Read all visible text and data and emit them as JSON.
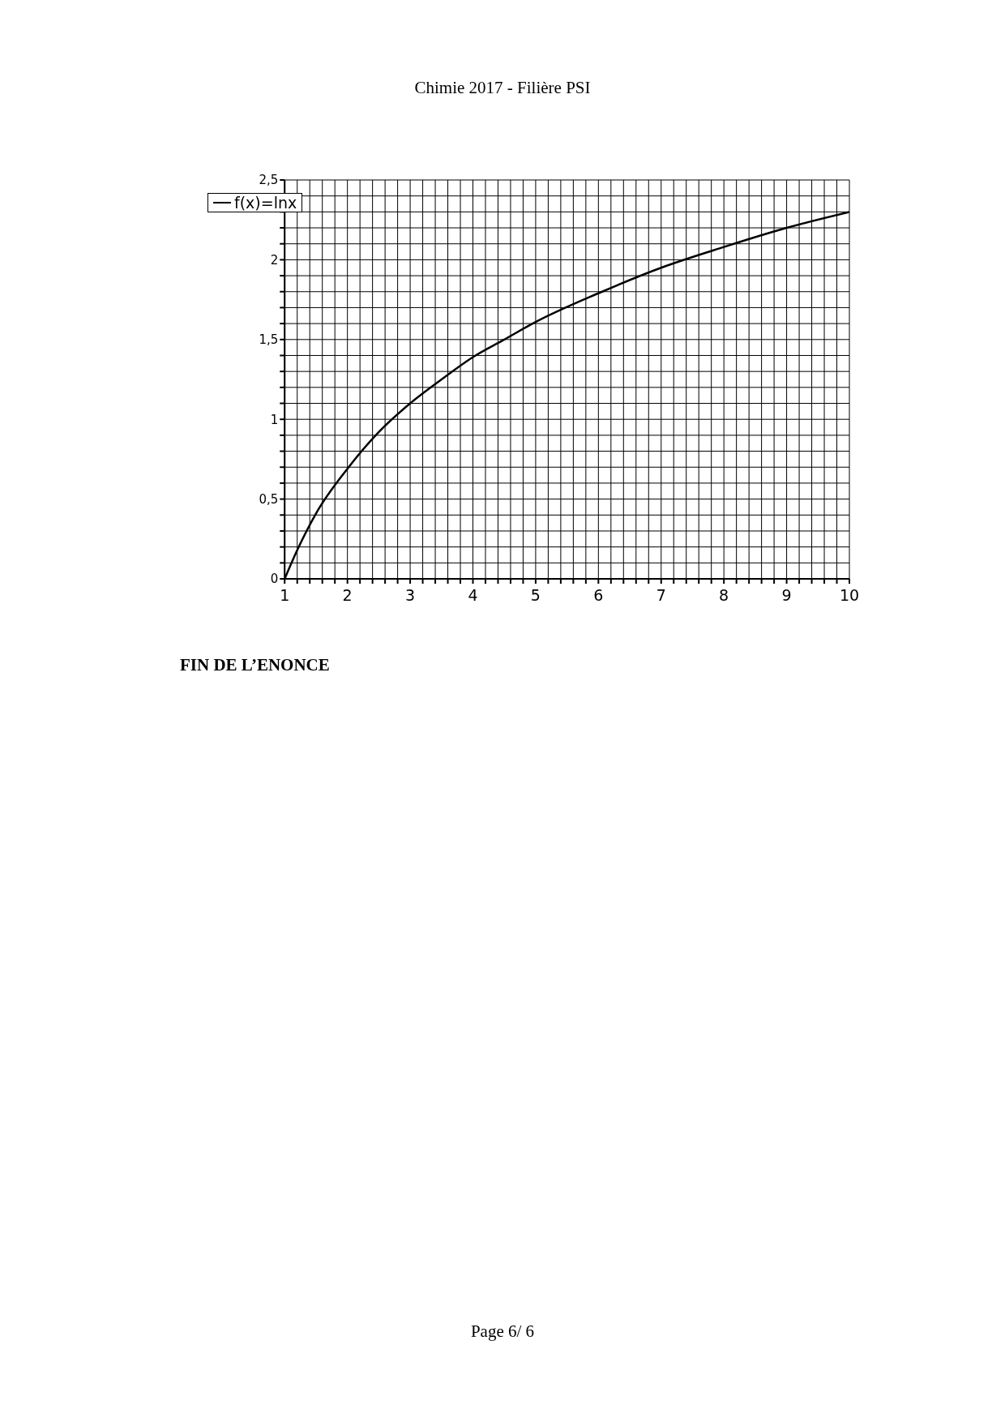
{
  "chart_data": {
    "type": "line",
    "title": "Chimie 2017 - Filière PSI",
    "annotations": [
      "FIN DE L’ENONCE",
      "Page 6/ 6"
    ],
    "x": [
      1,
      1.2,
      1.5,
      2,
      2.5,
      3,
      3.5,
      4,
      4.5,
      5,
      6,
      7,
      8,
      9,
      10
    ],
    "series": [
      {
        "name": "f(x)=lnx",
        "color": "#000000",
        "values": [
          0,
          0.18,
          0.41,
          0.69,
          0.92,
          1.1,
          1.25,
          1.39,
          1.5,
          1.61,
          1.79,
          1.95,
          2.08,
          2.2,
          2.3
        ]
      }
    ],
    "xlim": [
      1,
      10
    ],
    "ylim": [
      0,
      2.5
    ],
    "xticks": [
      1,
      {
        "value": 1.2,
        "label": null
      },
      {
        "value": 1.4,
        "label": null
      },
      {
        "value": 1.6,
        "label": null
      },
      {
        "value": 1.8,
        "label": null
      },
      2,
      {
        "value": 2.2,
        "label": null
      },
      {
        "value": 2.4,
        "label": null
      },
      {
        "value": 2.6,
        "label": null
      },
      {
        "value": 2.8,
        "label": null
      },
      3,
      {
        "value": 3.2,
        "label": null
      },
      {
        "value": 3.4,
        "label": null
      },
      {
        "value": 3.6,
        "label": null
      },
      {
        "value": 3.8,
        "label": null
      },
      4,
      {
        "value": 4.2,
        "label": null
      },
      {
        "value": 4.4,
        "label": null
      },
      {
        "value": 4.6,
        "label": null
      },
      {
        "value": 4.8,
        "label": null
      },
      5,
      {
        "value": 5.2,
        "label": null
      },
      {
        "value": 5.4,
        "label": null
      },
      {
        "value": 5.6,
        "label": null
      },
      {
        "value": 5.8,
        "label": null
      },
      6,
      {
        "value": 6.2,
        "label": null
      },
      {
        "value": 6.4,
        "label": null
      },
      {
        "value": 6.6,
        "label": null
      },
      {
        "value": 6.8,
        "label": null
      },
      7,
      {
        "value": 7.2,
        "label": null
      },
      {
        "value": 7.4,
        "label": null
      },
      {
        "value": 7.6,
        "label": null
      },
      {
        "value": 7.8,
        "label": null
      },
      8,
      {
        "value": 8.2,
        "label": null
      },
      {
        "value": 8.4,
        "label": null
      },
      {
        "value": 8.6,
        "label": null
      },
      {
        "value": 8.8,
        "label": null
      },
      9,
      {
        "value": 9.2,
        "label": null
      },
      {
        "value": 9.4,
        "label": null
      },
      {
        "value": 9.6,
        "label": null
      },
      {
        "value": 9.8,
        "label": null
      },
      10
    ],
    "yticks": [
      0,
      {
        "value": 0.1,
        "label": null
      },
      {
        "value": 0.2,
        "label": null
      },
      {
        "value": 0.3,
        "label": null
      },
      {
        "value": 0.4,
        "label": null
      },
      {
        "value": 0.5,
        "label": "0,5"
      },
      {
        "value": 0.6,
        "label": null
      },
      {
        "value": 0.7,
        "label": null
      },
      {
        "value": 0.8,
        "label": null
      },
      {
        "value": 0.9,
        "label": null
      },
      1,
      {
        "value": 1.1,
        "label": null
      },
      {
        "value": 1.2,
        "label": null
      },
      {
        "value": 1.3,
        "label": null
      },
      {
        "value": 1.4,
        "label": null
      },
      {
        "value": 1.5,
        "label": "1,5"
      },
      {
        "value": 1.6,
        "label": null
      },
      {
        "value": 1.7,
        "label": null
      },
      {
        "value": 1.8,
        "label": null
      },
      {
        "value": 1.9,
        "label": null
      },
      2,
      {
        "value": 2.1,
        "label": null
      },
      {
        "value": 2.2,
        "label": null
      },
      {
        "value": 2.3,
        "label": null
      },
      {
        "value": 2.4,
        "label": null
      },
      {
        "value": 2.5,
        "label": "2,5"
      }
    ],
    "grid": true,
    "legend": "top left",
    "line_style": "solid"
  }
}
